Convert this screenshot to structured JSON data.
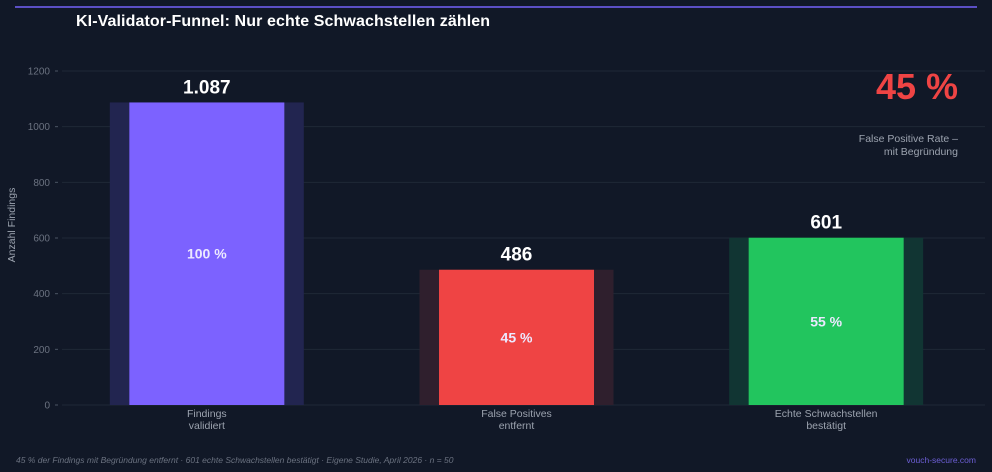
{
  "title": "KI-Validator-Funnel: Nur echte Schwachstellen zählen",
  "highlight": {
    "value": "45 %",
    "caption": "False Positive Rate – mit Begründung",
    "color": "#ef4444"
  },
  "footer": {
    "note": "45 % der Findings mit Begründung entfernt · 601 echte Schwachstellen bestätigt · Eigene Studie, April 2026 · n = 50",
    "brand": "vouch-secure.com"
  },
  "chart_data": {
    "type": "bar",
    "title": "KI-Validator-Funnel: Nur echte Schwachstellen zählen",
    "xlabel": "",
    "ylabel": "Anzahl Findings",
    "ylim": [
      0,
      1200
    ],
    "yticks": [
      0,
      200,
      400,
      600,
      800,
      1000,
      1200
    ],
    "grid": true,
    "categories": [
      [
        "Findings",
        "validiert"
      ],
      [
        "False Positives",
        "entfernt"
      ],
      [
        "Echte Schwachstellen",
        "bestätigt"
      ]
    ],
    "values": [
      1087,
      486,
      601
    ],
    "value_labels": [
      "1.087",
      "486",
      "601"
    ],
    "percent_labels": [
      "100 %",
      "45 %",
      "55 %"
    ],
    "colors": [
      "#7c62ff",
      "#ef4444",
      "#22c55e"
    ],
    "halo_colors": [
      "#222550",
      "#2f1f2d",
      "#113533"
    ]
  }
}
